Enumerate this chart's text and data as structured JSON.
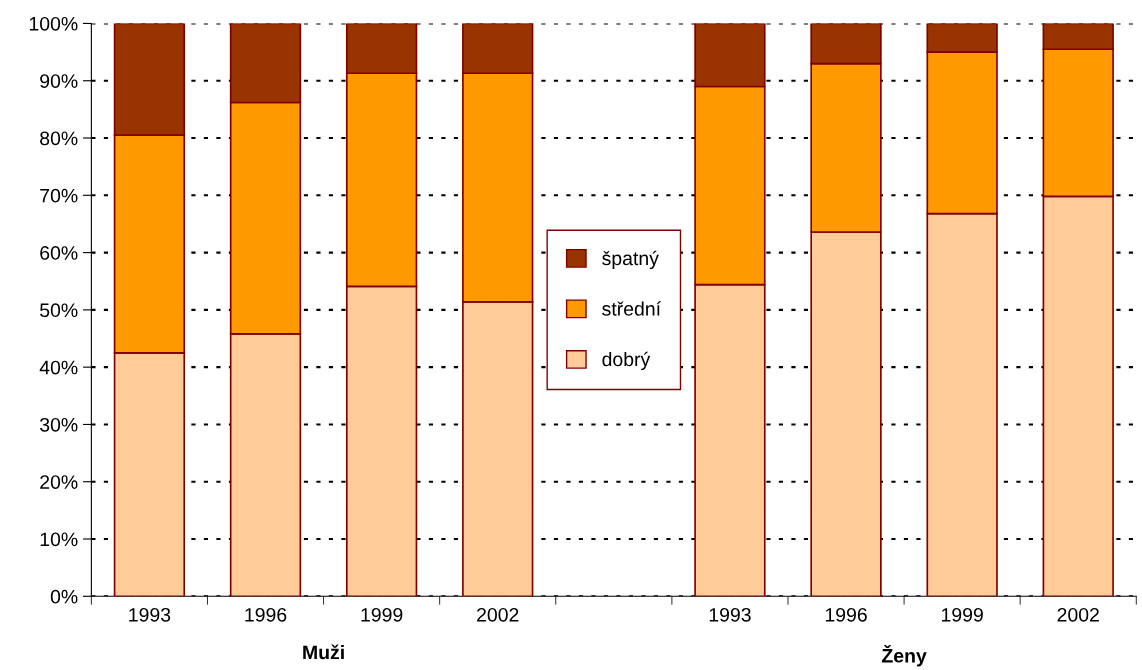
{
  "chart_data": {
    "type": "bar",
    "stacked": true,
    "categories": [
      "1993",
      "1996",
      "1999",
      "2002",
      null,
      "1993",
      "1996",
      "1999",
      "2002"
    ],
    "series": [
      {
        "name": "dobrý",
        "color": "#ffcc99",
        "values": [
          42.5,
          45.8,
          54.1,
          51.4,
          null,
          54.4,
          63.6,
          66.8,
          69.8
        ]
      },
      {
        "name": "střední",
        "color": "#ff9900",
        "values": [
          38,
          40.4,
          37.2,
          39.9,
          null,
          34.6,
          29.4,
          28.2,
          25.7
        ]
      },
      {
        "name": "špatný",
        "color": "#993300",
        "values": [
          19.5,
          13.8,
          8.7,
          8.7,
          null,
          11,
          7,
          5,
          4.5
        ]
      }
    ],
    "ylim": [
      0,
      100
    ],
    "yticks": [
      {
        "value": 0,
        "label": "0%"
      },
      {
        "value": 10,
        "label": "10%"
      },
      {
        "value": 20,
        "label": "20%"
      },
      {
        "value": 30,
        "label": "30%"
      },
      {
        "value": 40,
        "label": "40%"
      },
      {
        "value": 50,
        "label": "50%"
      },
      {
        "value": 60,
        "label": "60%"
      },
      {
        "value": 70,
        "label": "70%"
      },
      {
        "value": 80,
        "label": "80%"
      },
      {
        "value": 90,
        "label": "90%"
      },
      {
        "value": 100,
        "label": "100%"
      }
    ],
    "grid": "y",
    "line_style": "dotted",
    "legend": "center",
    "annotations": [
      "Muži",
      "Ženy"
    ]
  }
}
